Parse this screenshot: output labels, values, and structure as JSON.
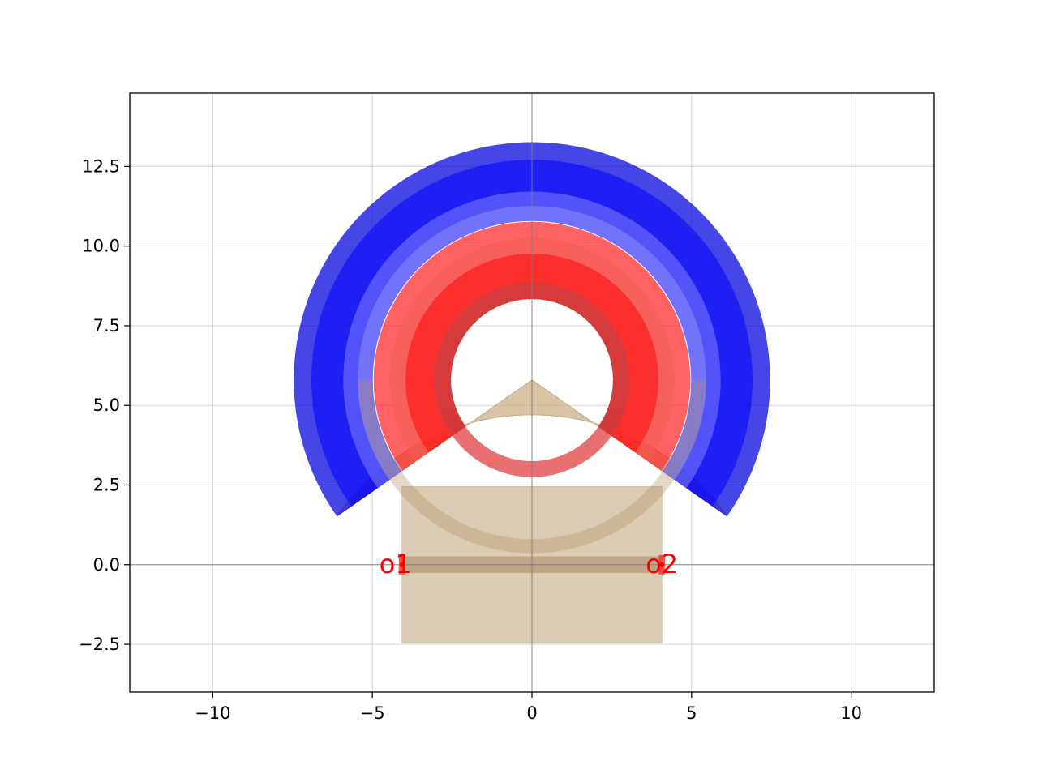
{
  "chart_data": {
    "type": "layout",
    "title": "",
    "xlabel": "",
    "ylabel": "",
    "xlim": [
      -12.6,
      12.6
    ],
    "ylim": [
      -4.0,
      14.8
    ],
    "grid": true,
    "axis_lines": {
      "x": 0,
      "y": 0
    },
    "x_ticks": [
      {
        "value": -10,
        "label": "−10"
      },
      {
        "value": -5,
        "label": "−5"
      },
      {
        "value": 0,
        "label": "0"
      },
      {
        "value": 5,
        "label": "5"
      },
      {
        "value": 10,
        "label": "10"
      }
    ],
    "y_ticks": [
      {
        "value": -2.5,
        "label": "−2.5"
      },
      {
        "value": 0,
        "label": "0.0"
      },
      {
        "value": 2.5,
        "label": "2.5"
      },
      {
        "value": 5,
        "label": "5.0"
      },
      {
        "value": 7.5,
        "label": "7.5"
      },
      {
        "value": 10,
        "label": "10.0"
      },
      {
        "value": 12.5,
        "label": "12.5"
      }
    ],
    "ring_center": [
      0,
      5.8
    ],
    "ring_gap_angle_from_bottom_deg": 55,
    "bands": [
      {
        "r_inner": 5.0,
        "r_outer": 7.45,
        "color": "#0000dd",
        "opacity": 0.72
      },
      {
        "r_inner": 5.0,
        "r_outer": 6.9,
        "color": "#0000ff",
        "opacity": 0.55
      },
      {
        "r_inner": 5.0,
        "r_outer": 5.9,
        "color": "#8888ff",
        "opacity": 0.5
      },
      {
        "r_inner": 5.0,
        "r_outer": 5.45,
        "color": "#9999ff",
        "opacity": 0.45
      },
      {
        "r_inner": 2.55,
        "r_outer": 4.95,
        "color": "#ff2020",
        "opacity": 0.7
      },
      {
        "r_inner": 2.55,
        "r_outer": 4.45,
        "color": "#f06050",
        "opacity": 0.55
      },
      {
        "r_inner": 2.55,
        "r_outer": 3.95,
        "color": "#ff1010",
        "opacity": 0.6
      },
      {
        "r_inner": 2.55,
        "r_outer": 3.05,
        "color": "#b44",
        "opacity": 0.6
      }
    ],
    "bottom_ring": {
      "r_inner": 2.55,
      "r_outer": 3.05,
      "color": "#e04040",
      "opacity": 0.75
    },
    "cladding_ring": {
      "r_inner": 5.0,
      "r_outer": 5.45,
      "color": "#b09060",
      "opacity": 0.35
    },
    "cladding_sector": {
      "r": 7.45,
      "half_angle_deg": 55,
      "color": "#c8aa80",
      "opacity": 0.7
    },
    "rectangles": [
      {
        "x0": -4.07,
        "y0": -2.45,
        "x1": 4.07,
        "y1": 2.45,
        "color": "#b09060",
        "opacity": 0.45
      },
      {
        "x0": -4.07,
        "y0": -0.25,
        "x1": 4.07,
        "y1": 0.25,
        "color": "#a07850",
        "opacity": 0.45
      }
    ],
    "ports": [
      {
        "name": "o1",
        "x": -4.07,
        "y": 0
      },
      {
        "name": "o2",
        "x": 4.07,
        "y": 0
      }
    ]
  }
}
